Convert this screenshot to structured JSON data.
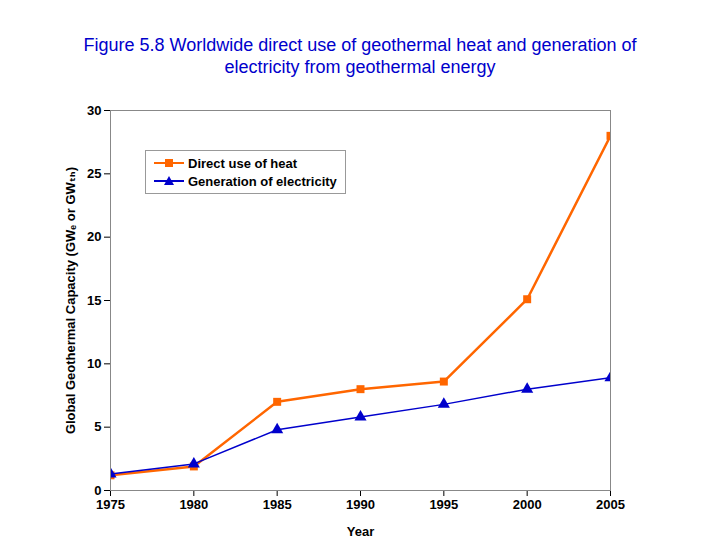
{
  "chart_data": {
    "type": "line",
    "title": "Figure 5.8 Worldwide direct use of geothermal heat and generation of electricity from geothermal energy",
    "x_label": "Year",
    "y_label": "Global Geothermal Capacity (GWₑ or GWₜₕ)",
    "x": [
      1975,
      1980,
      1985,
      1990,
      1995,
      2000,
      2005
    ],
    "series": [
      {
        "name": "Direct use of heat",
        "color": "#ff6600",
        "marker": "square",
        "values": [
          1.2,
          1.9,
          7.0,
          8.0,
          8.6,
          15.1,
          28.0
        ]
      },
      {
        "name": "Generation of electricity",
        "color": "#0000cc",
        "marker": "triangle",
        "values": [
          1.3,
          2.1,
          4.8,
          5.8,
          6.8,
          8.0,
          8.9
        ]
      }
    ],
    "xlim": [
      1975,
      2005
    ],
    "xticks": [
      1975,
      1980,
      1985,
      1990,
      1995,
      2000,
      2005
    ],
    "ylim": [
      0,
      30
    ],
    "yticks": [
      0,
      5,
      10,
      15,
      20,
      25,
      30
    ],
    "grid": false,
    "legend": "upper left"
  }
}
